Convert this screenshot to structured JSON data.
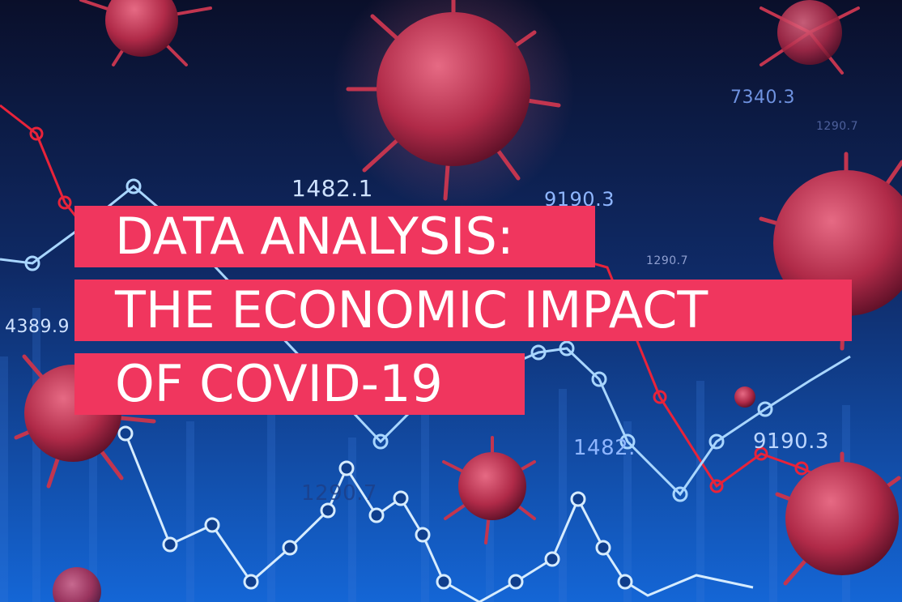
{
  "hero": {
    "title_lines": [
      "DATA ANALYSIS:",
      "THE ECONOMIC IMPACT",
      "OF COVID-19"
    ]
  },
  "background_numbers": [
    "1482.1",
    "9190.3",
    "7340.3",
    "1290.7",
    "1290.7",
    "4389.9",
    "1482.",
    "9190.3",
    "1290.7"
  ],
  "colors": {
    "banner": "#f0365e",
    "background_top": "#0a0f2a",
    "background_bottom": "#1466d6",
    "line_red": "#e8233a",
    "line_light": "#bfe2ff",
    "virus": "#c2354f"
  },
  "icons": [
    "virus-icon",
    "line-chart-icon"
  ]
}
